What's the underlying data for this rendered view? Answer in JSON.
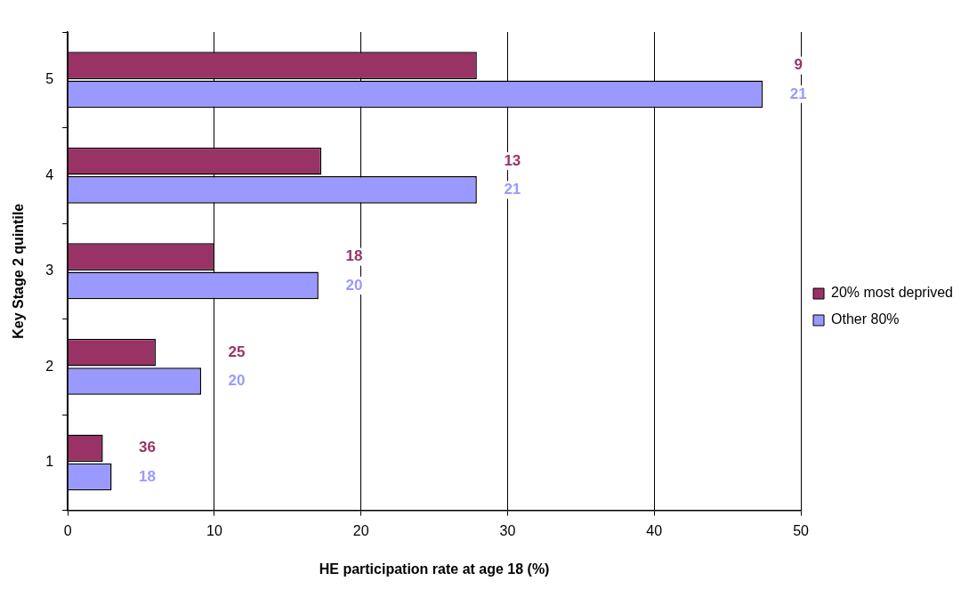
{
  "chart_data": {
    "type": "bar",
    "orientation": "horizontal",
    "xlabel": "HE participation rate at age 18 (%)",
    "ylabel": "Key Stage 2 quintile",
    "categories": [
      "5",
      "4",
      "3",
      "2",
      "1"
    ],
    "series": [
      {
        "name": "20% most deprived",
        "color": "#993366",
        "values": [
          27.9,
          17.3,
          10.0,
          6.0,
          2.4
        ]
      },
      {
        "name": "Other 80%",
        "color": "#9999ff",
        "values": [
          47.4,
          27.9,
          17.1,
          9.1,
          3.0
        ]
      }
    ],
    "annotations": [
      "9",
      "21",
      "13",
      "21",
      "18",
      "20",
      "25",
      "20",
      "36",
      "18"
    ],
    "xlim": [
      0,
      50
    ],
    "xticks": [
      0,
      10,
      20,
      30,
      40,
      50
    ],
    "grid": "x",
    "legend": "right"
  }
}
